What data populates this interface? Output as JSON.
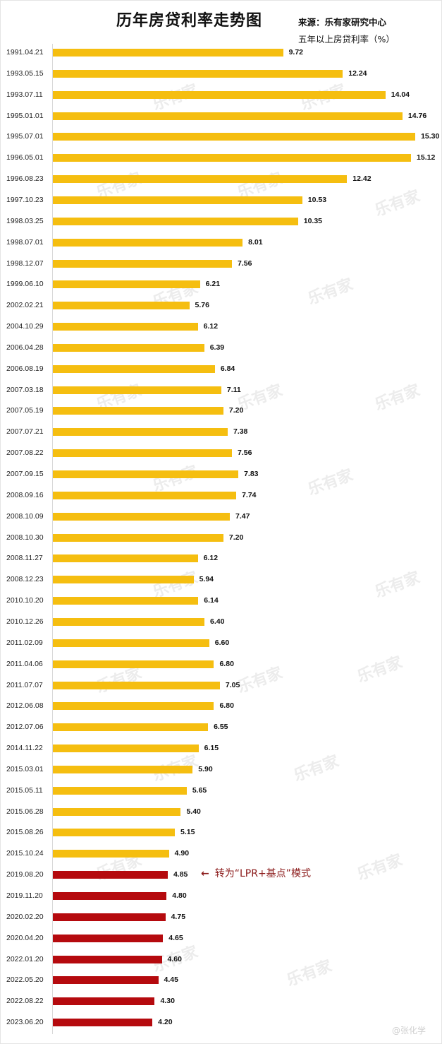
{
  "header": {
    "title": "历年房贷利率走势图",
    "source": "来源：乐有家研究中心",
    "unit": "五年以上房贷利率（%）"
  },
  "annotation": {
    "arrow": "←",
    "text": "转为“LPR+基点”模式"
  },
  "watermark": {
    "text": "乐有家",
    "weibo": "@张化学"
  },
  "colors": {
    "pre_lpr": "#F5BE10",
    "lpr": "#B50A0E"
  },
  "chart_data": {
    "type": "bar",
    "orientation": "horizontal",
    "title": "历年房贷利率走势图",
    "subtitle": "五年以上房贷利率（%）",
    "source": "来源：乐有家研究中心",
    "xlabel": "",
    "ylabel": "",
    "grid": false,
    "legend": null,
    "annotations": [
      {
        "category": "2019.08.20",
        "text": "转为“LPR+基点”模式"
      }
    ],
    "categories": [
      "1991.04.21",
      "1993.05.15",
      "1993.07.11",
      "1995.01.01",
      "1995.07.01",
      "1996.05.01",
      "1996.08.23",
      "1997.10.23",
      "1998.03.25",
      "1998.07.01",
      "1998.12.07",
      "1999.06.10",
      "2002.02.21",
      "2004.10.29",
      "2006.04.28",
      "2006.08.19",
      "2007.03.18",
      "2007.05.19",
      "2007.07.21",
      "2007.08.22",
      "2007.09.15",
      "2008.09.16",
      "2008.10.09",
      "2008.10.30",
      "2008.11.27",
      "2008.12.23",
      "2010.10.20",
      "2010.12.26",
      "2011.02.09",
      "2011.04.06",
      "2011.07.07",
      "2012.06.08",
      "2012.07.06",
      "2014.11.22",
      "2015.03.01",
      "2015.05.11",
      "2015.06.28",
      "2015.08.26",
      "2015.10.24",
      "2019.08.20",
      "2019.11.20",
      "2020.02.20",
      "2020.04.20",
      "2022.01.20",
      "2022.05.20",
      "2022.08.22",
      "2023.06.20"
    ],
    "values": [
      9.72,
      12.24,
      14.04,
      14.76,
      15.3,
      15.12,
      12.42,
      10.53,
      10.35,
      8.01,
      7.56,
      6.21,
      5.76,
      6.12,
      6.39,
      6.84,
      7.11,
      7.2,
      7.38,
      7.56,
      7.83,
      7.74,
      7.47,
      7.2,
      6.12,
      5.94,
      6.14,
      6.4,
      6.6,
      6.8,
      7.05,
      6.8,
      6.55,
      6.15,
      5.9,
      5.65,
      5.4,
      5.15,
      4.9,
      4.85,
      4.8,
      4.75,
      4.65,
      4.6,
      4.45,
      4.3,
      4.2
    ],
    "labels": [
      "9.72",
      "12.24",
      "14.04",
      "14.76",
      "15.30",
      "15.12",
      "12.42",
      "10.53",
      "10.35",
      "8.01",
      "7.56",
      "6.21",
      "5.76",
      "6.12",
      "6.39",
      "6.84",
      "7.11",
      "7.20",
      "7.38",
      "7.56",
      "7.83",
      "7.74",
      "7.47",
      "7.20",
      "6.12",
      "5.94",
      "6.14",
      "6.40",
      "6.60",
      "6.80",
      "7.05",
      "6.80",
      "6.55",
      "6.15",
      "5.90",
      "5.65",
      "5.40",
      "5.15",
      "4.90",
      "4.85",
      "4.80",
      "4.75",
      "4.65",
      "4.60",
      "4.45",
      "4.30",
      "4.20"
    ],
    "lpr_start_index": 39,
    "xlim": [
      0,
      15.5
    ]
  }
}
